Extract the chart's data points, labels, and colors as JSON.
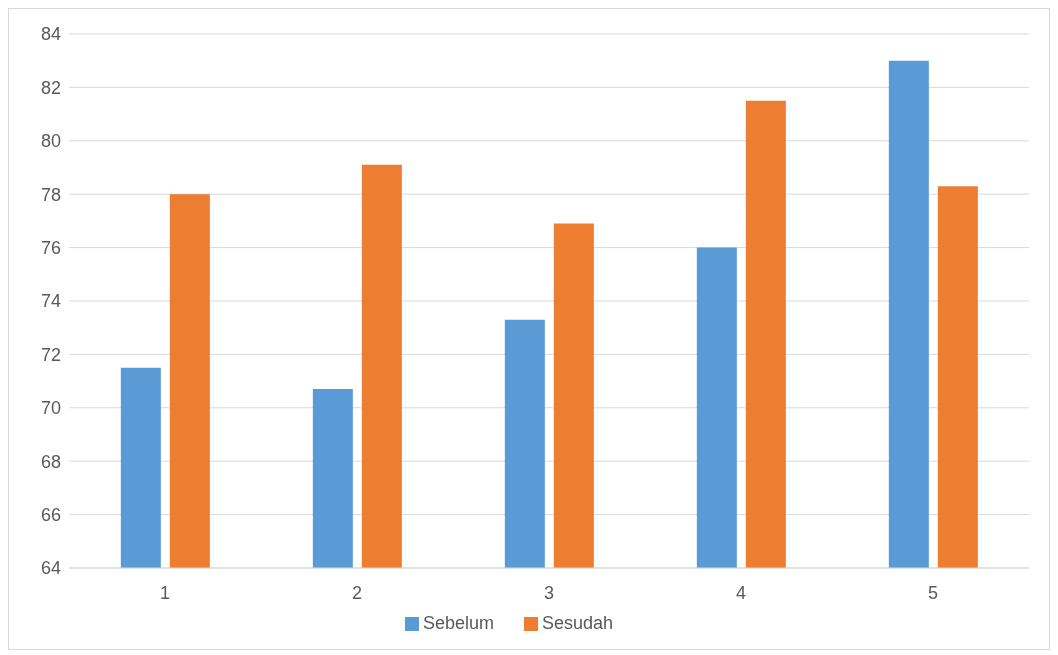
{
  "chart_data": {
    "type": "bar",
    "categories": [
      "1",
      "2",
      "3",
      "4",
      "5"
    ],
    "series": [
      {
        "name": "Sebelum",
        "color": "#5b9bd5",
        "values": [
          71.5,
          70.7,
          73.3,
          76.0,
          83.0
        ]
      },
      {
        "name": "Sesudah",
        "color": "#ed7d31",
        "values": [
          78.0,
          79.1,
          76.9,
          81.5,
          78.3
        ]
      }
    ],
    "ylim": [
      64,
      84
    ],
    "yticks": [
      64,
      66,
      68,
      70,
      72,
      74,
      76,
      78,
      80,
      82,
      84
    ],
    "grid": "y",
    "legend": "bottom"
  }
}
